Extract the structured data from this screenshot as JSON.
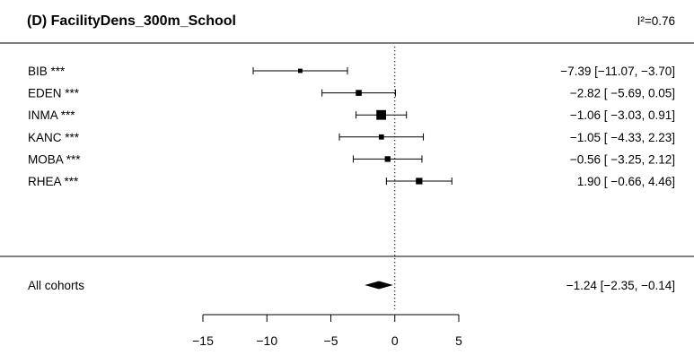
{
  "chart_data": {
    "type": "forest",
    "title": "(D) FacilityDens_300m_School",
    "heterogeneity": "I²=0.76",
    "xlim": [
      -15,
      5
    ],
    "xticks": [
      "−15",
      "−10",
      "−5",
      "0",
      "5"
    ],
    "xtick_values": [
      -15,
      -10,
      -5,
      0,
      5
    ],
    "reference_line": 0,
    "rows": [
      {
        "label": "BIB ***",
        "estimate": -7.39,
        "lower": -11.07,
        "upper": -3.7,
        "weight": 0.6,
        "text": "−7.39 [−11.07, −3.70]"
      },
      {
        "label": "EDEN ***",
        "estimate": -2.82,
        "lower": -5.69,
        "upper": 0.05,
        "weight": 1.2,
        "text": "−2.82 [ −5.69,  0.05]"
      },
      {
        "label": "INMA ***",
        "estimate": -1.06,
        "lower": -3.03,
        "upper": 0.91,
        "weight": 2.6,
        "text": "−1.06 [ −3.03,  0.91]"
      },
      {
        "label": "KANC ***",
        "estimate": -1.05,
        "lower": -4.33,
        "upper": 2.23,
        "weight": 0.9,
        "text": "−1.05 [ −4.33,  2.23]"
      },
      {
        "label": "MOBA ***",
        "estimate": -0.56,
        "lower": -3.25,
        "upper": 2.12,
        "weight": 1.1,
        "text": "−0.56 [ −3.25,  2.12]"
      },
      {
        "label": "RHEA ***",
        "estimate": 1.9,
        "lower": -0.66,
        "upper": 4.46,
        "weight": 1.4,
        "text": "1.90 [ −0.66,  4.46]"
      }
    ],
    "summary": {
      "label": "All cohorts",
      "estimate": -1.24,
      "lower": -2.35,
      "upper": -0.14,
      "text": "−1.24 [−2.35, −0.14]"
    }
  }
}
